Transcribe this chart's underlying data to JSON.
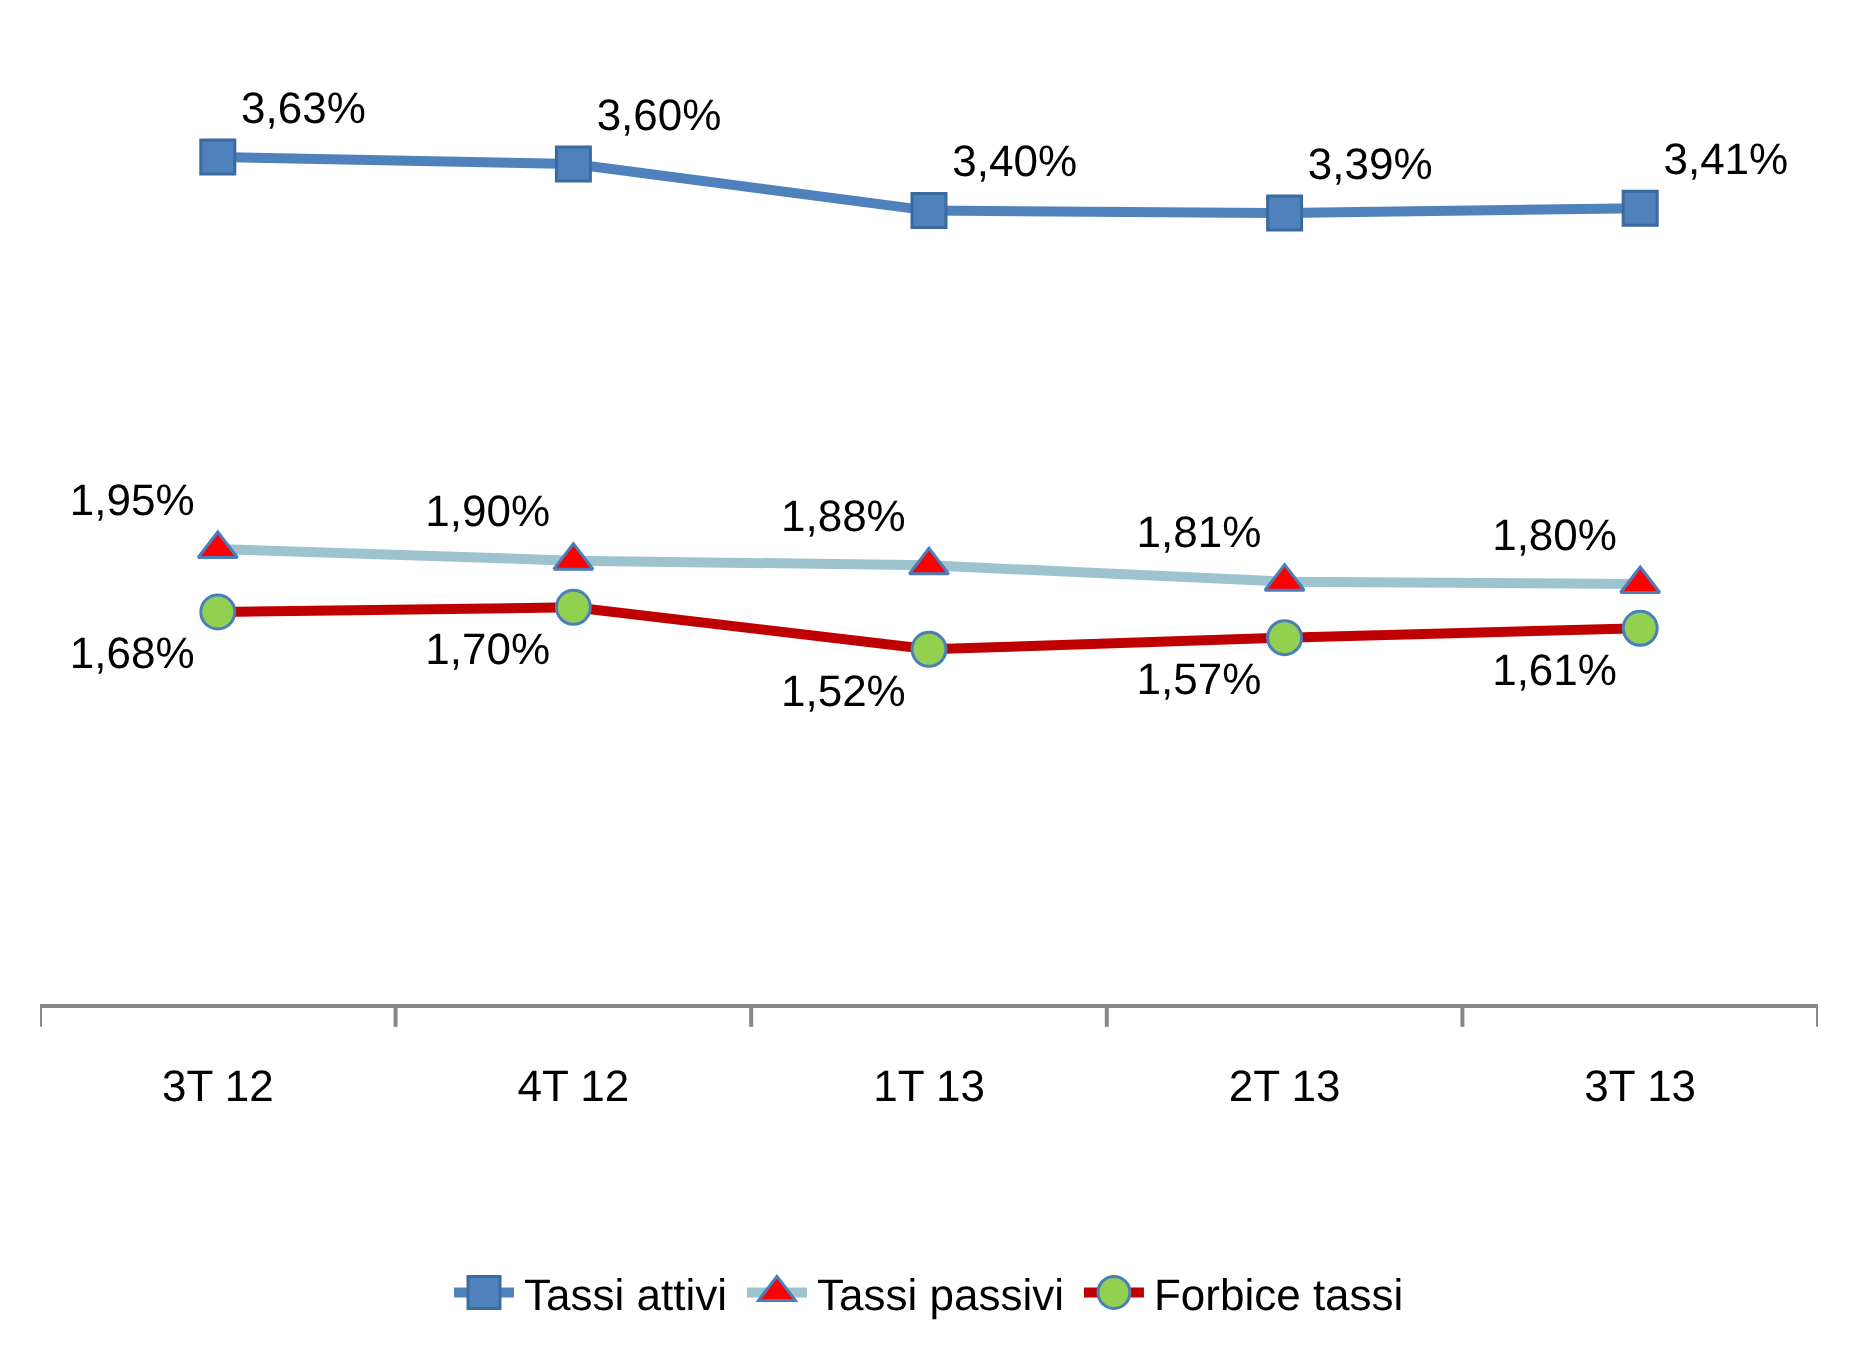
{
  "chart_data": {
    "type": "line",
    "categories": [
      "3T 12",
      "4T 12",
      "1T 13",
      "2T 13",
      "3T 13"
    ],
    "series": [
      {
        "name": "Tassi attivi",
        "color": "#4f81bd",
        "marker": "square",
        "colors": [
          "#4f81bd",
          "#4f81bd",
          "#4f81bd",
          "#4f81bd",
          "#4f81bd"
        ],
        "values": [
          3.63,
          3.6,
          3.4,
          3.39,
          3.41
        ],
        "value_labels": [
          "3,63%",
          "3,60%",
          "3,40%",
          "3,39%",
          "3,41%"
        ]
      },
      {
        "name": "Tassi passivi",
        "color": "#9dc3ce",
        "marker": "triangle",
        "colors": [
          "#ff0000",
          "#ff0000",
          "#ff0000",
          "#ff0000",
          "#ff0000"
        ],
        "values": [
          1.95,
          1.9,
          1.88,
          1.81,
          1.8
        ],
        "value_labels": [
          "1,95%",
          "1,90%",
          "1,88%",
          "1,81%",
          "1,80%"
        ]
      },
      {
        "name": "Forbice tassi",
        "color": "#c00000",
        "marker": "circle",
        "colors": [
          "#92d050",
          "#92d050",
          "#92d050",
          "#92d050",
          "#92d050"
        ],
        "values": [
          1.68,
          1.7,
          1.52,
          1.57,
          1.61
        ],
        "value_labels": [
          "1,68%",
          "1,70%",
          "1,52%",
          "1,57%",
          "1,61%"
        ]
      }
    ],
    "legend": "bottom"
  }
}
